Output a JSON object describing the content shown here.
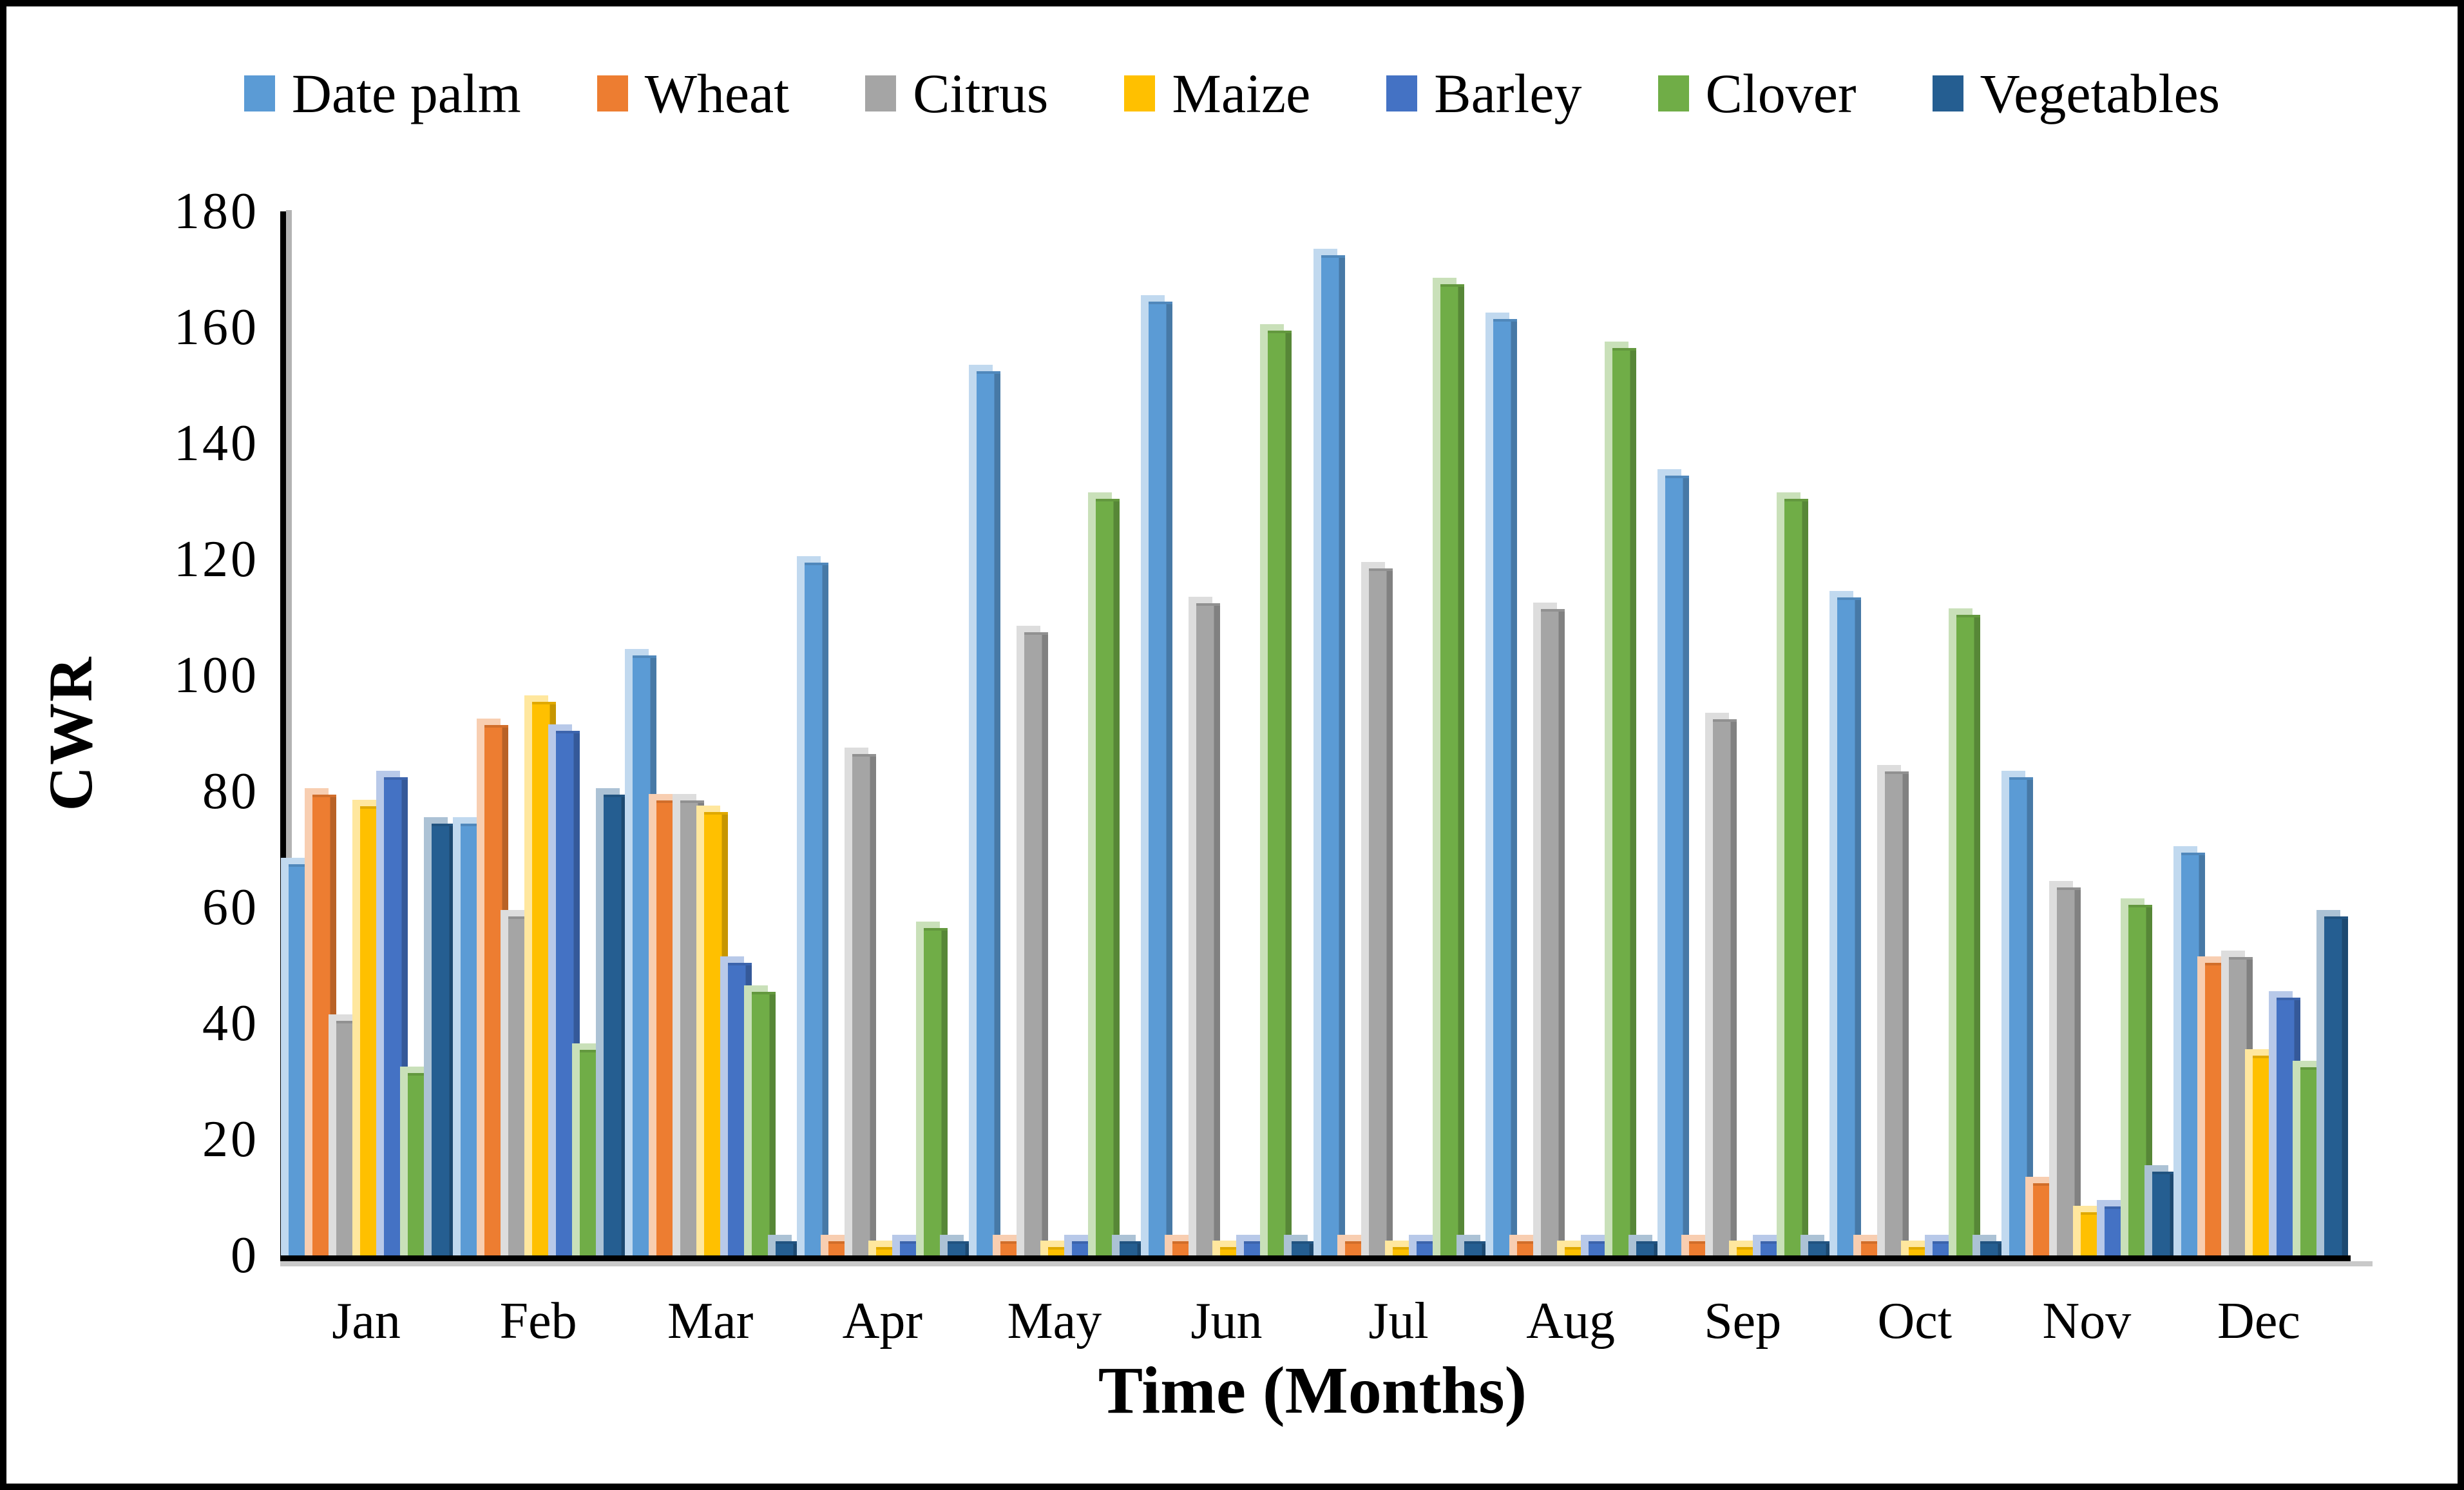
{
  "figure": {
    "background": "#FFFFFF",
    "border_color": "#000000"
  },
  "chart_data": {
    "type": "bar",
    "title": "",
    "xlabel": "Time (Months)",
    "ylabel": "CWR",
    "ylim": [
      0,
      180
    ],
    "y_tick_step": 20,
    "y_ticks": [
      0,
      20,
      40,
      60,
      80,
      100,
      120,
      140,
      160,
      180
    ],
    "grid": false,
    "legend_position": "top",
    "bar_style": "3d-clustered",
    "categories": [
      "Jan",
      "Feb",
      "Mar",
      "Apr",
      "May",
      "Jun",
      "Jul",
      "Aug",
      "Sep",
      "Oct",
      "Nov",
      "Dec"
    ],
    "series": [
      {
        "name": "Date palm",
        "color": "#5B9BD5",
        "values": [
          67,
          74,
          103,
          119,
          152,
          164,
          172,
          161,
          134,
          113,
          82,
          69
        ]
      },
      {
        "name": "Wheat",
        "color": "#ED7D31",
        "values": [
          79,
          91,
          78,
          2,
          2,
          2,
          2,
          2,
          2,
          2,
          12,
          50
        ]
      },
      {
        "name": "Citrus",
        "color": "#A5A5A5",
        "values": [
          40,
          58,
          78,
          86,
          107,
          112,
          118,
          111,
          92,
          83,
          63,
          51
        ]
      },
      {
        "name": "Maize",
        "color": "#FFC000",
        "values": [
          77,
          95,
          76,
          1,
          1,
          1,
          1,
          1,
          1,
          1,
          7,
          34
        ]
      },
      {
        "name": "Barley",
        "color": "#4472C4",
        "values": [
          82,
          90,
          50,
          2,
          2,
          2,
          2,
          2,
          2,
          2,
          8,
          44
        ]
      },
      {
        "name": "Clover",
        "color": "#70AD47",
        "values": [
          31,
          35,
          45,
          56,
          130,
          159,
          167,
          156,
          130,
          110,
          60,
          32
        ]
      },
      {
        "name": "Vegetables",
        "color": "#255E91",
        "values": [
          74,
          79,
          2,
          2,
          2,
          2,
          2,
          2,
          2,
          2,
          14,
          58
        ]
      }
    ]
  }
}
